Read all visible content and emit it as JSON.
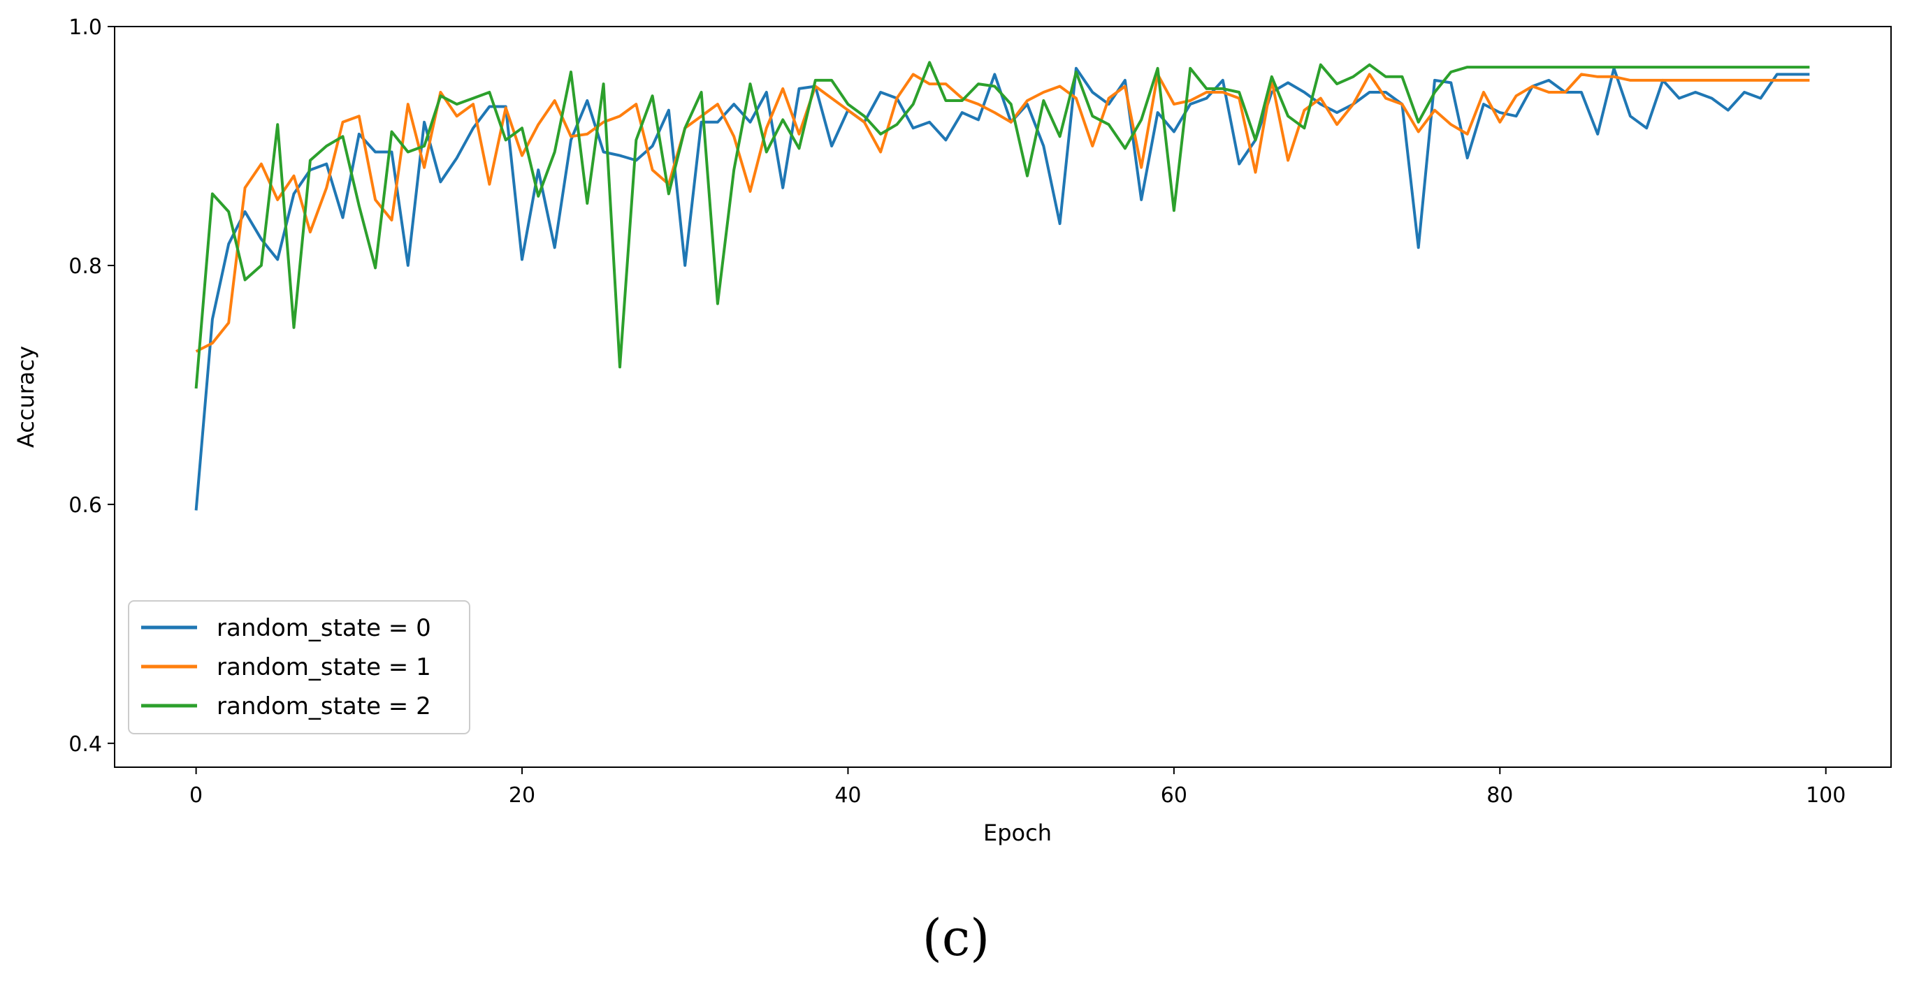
{
  "caption": "(c)",
  "chart_data": {
    "type": "line",
    "xlabel": "Epoch",
    "ylabel": "Accuracy",
    "xlim": [
      -5,
      104
    ],
    "ylim": [
      0.38,
      1.0
    ],
    "xticks": [
      0,
      20,
      40,
      60,
      80,
      100
    ],
    "yticks": [
      0.4,
      0.6,
      0.8,
      1.0
    ],
    "ytick_labels": [
      "0.4",
      "0.6",
      "0.8",
      "1.0"
    ],
    "grid": false,
    "legend_position": "lower-left",
    "x": [
      0,
      1,
      2,
      3,
      4,
      5,
      6,
      7,
      8,
      9,
      10,
      11,
      12,
      13,
      14,
      15,
      16,
      17,
      18,
      19,
      20,
      21,
      22,
      23,
      24,
      25,
      26,
      27,
      28,
      29,
      30,
      31,
      32,
      33,
      34,
      35,
      36,
      37,
      38,
      39,
      40,
      41,
      42,
      43,
      44,
      45,
      46,
      47,
      48,
      49,
      50,
      51,
      52,
      53,
      54,
      55,
      56,
      57,
      58,
      59,
      60,
      61,
      62,
      63,
      64,
      65,
      66,
      67,
      68,
      69,
      70,
      71,
      72,
      73,
      74,
      75,
      76,
      77,
      78,
      79,
      80,
      81,
      82,
      83,
      84,
      85,
      86,
      87,
      88,
      89,
      90,
      91,
      92,
      93,
      94,
      95,
      96,
      97,
      98,
      99
    ],
    "series": [
      {
        "name": "random_state = 0",
        "color": "#1f77b4",
        "values": [
          0.595,
          0.755,
          0.818,
          0.845,
          0.822,
          0.805,
          0.86,
          0.88,
          0.885,
          0.84,
          0.91,
          0.895,
          0.895,
          0.8,
          0.92,
          0.87,
          0.89,
          0.915,
          0.933,
          0.933,
          0.805,
          0.88,
          0.815,
          0.905,
          0.938,
          0.895,
          0.892,
          0.888,
          0.9,
          0.93,
          0.8,
          0.92,
          0.92,
          0.935,
          0.92,
          0.945,
          0.865,
          0.948,
          0.95,
          0.9,
          0.93,
          0.92,
          0.945,
          0.94,
          0.915,
          0.92,
          0.905,
          0.928,
          0.922,
          0.96,
          0.92,
          0.935,
          0.9,
          0.835,
          0.965,
          0.945,
          0.935,
          0.955,
          0.855,
          0.928,
          0.912,
          0.935,
          0.94,
          0.955,
          0.885,
          0.905,
          0.945,
          0.953,
          0.945,
          0.935,
          0.928,
          0.935,
          0.945,
          0.945,
          0.935,
          0.815,
          0.955,
          0.953,
          0.89,
          0.935,
          0.928,
          0.925,
          0.95,
          0.955,
          0.945,
          0.945,
          0.91,
          0.965,
          0.925,
          0.915,
          0.955,
          0.94,
          0.945,
          0.94,
          0.93,
          0.945,
          0.94,
          0.96,
          0.96,
          0.96
        ]
      },
      {
        "name": "random_state = 1",
        "color": "#ff7f0e",
        "values": [
          0.728,
          0.735,
          0.752,
          0.865,
          0.885,
          0.855,
          0.875,
          0.828,
          0.865,
          0.92,
          0.925,
          0.855,
          0.838,
          0.935,
          0.882,
          0.945,
          0.925,
          0.935,
          0.868,
          0.932,
          0.892,
          0.918,
          0.938,
          0.908,
          0.91,
          0.92,
          0.925,
          0.935,
          0.88,
          0.868,
          0.915,
          0.925,
          0.935,
          0.908,
          0.862,
          0.915,
          0.948,
          0.91,
          0.95,
          0.94,
          0.93,
          0.92,
          0.895,
          0.94,
          0.96,
          0.952,
          0.952,
          0.94,
          0.935,
          0.928,
          0.92,
          0.938,
          0.945,
          0.95,
          0.94,
          0.9,
          0.94,
          0.95,
          0.882,
          0.96,
          0.935,
          0.938,
          0.945,
          0.945,
          0.94,
          0.878,
          0.955,
          0.888,
          0.93,
          0.94,
          0.918,
          0.935,
          0.96,
          0.94,
          0.935,
          0.912,
          0.93,
          0.918,
          0.91,
          0.945,
          0.92,
          0.942,
          0.95,
          0.945,
          0.945,
          0.96,
          0.958,
          0.958,
          0.955,
          0.955,
          0.955,
          0.955,
          0.955,
          0.955,
          0.955,
          0.955,
          0.955,
          0.955,
          0.955,
          0.955
        ]
      },
      {
        "name": "random_state = 2",
        "color": "#2ca02c",
        "values": [
          0.697,
          0.86,
          0.845,
          0.788,
          0.8,
          0.918,
          0.748,
          0.888,
          0.9,
          0.908,
          0.85,
          0.798,
          0.912,
          0.895,
          0.9,
          0.942,
          0.935,
          0.94,
          0.945,
          0.905,
          0.915,
          0.858,
          0.895,
          0.962,
          0.852,
          0.952,
          0.715,
          0.905,
          0.942,
          0.86,
          0.915,
          0.945,
          0.768,
          0.88,
          0.952,
          0.895,
          0.922,
          0.898,
          0.955,
          0.955,
          0.935,
          0.925,
          0.91,
          0.918,
          0.935,
          0.97,
          0.938,
          0.938,
          0.952,
          0.95,
          0.935,
          0.875,
          0.938,
          0.908,
          0.962,
          0.925,
          0.918,
          0.898,
          0.922,
          0.965,
          0.846,
          0.965,
          0.948,
          0.948,
          0.945,
          0.905,
          0.958,
          0.925,
          0.915,
          0.968,
          0.952,
          0.958,
          0.968,
          0.958,
          0.958,
          0.92,
          0.945,
          0.962,
          0.966,
          0.966,
          0.966,
          0.966,
          0.966,
          0.966,
          0.966,
          0.966,
          0.966,
          0.966,
          0.966,
          0.966,
          0.966,
          0.966,
          0.966,
          0.966,
          0.966,
          0.966,
          0.966,
          0.966,
          0.966,
          0.966
        ]
      }
    ]
  }
}
